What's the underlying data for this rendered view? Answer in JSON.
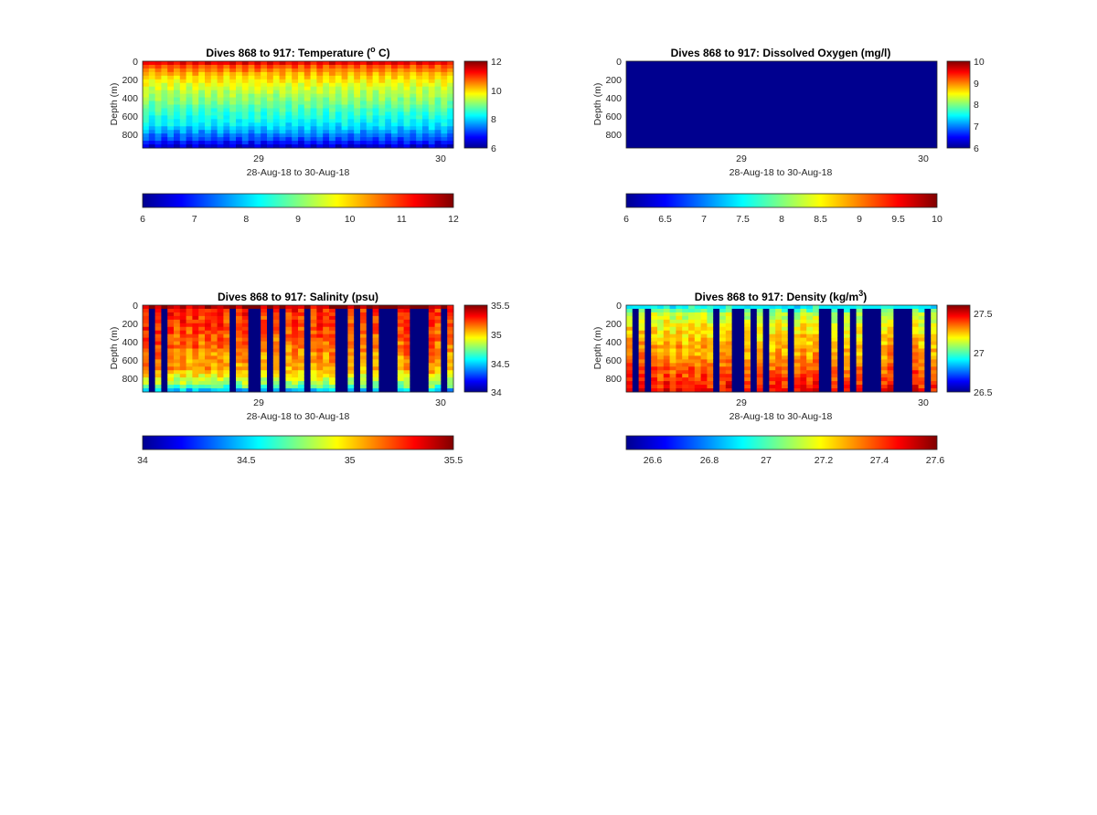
{
  "chart_data": [
    {
      "type": "heatmap",
      "title": "Dives 868 to 917: Temperature (° C)",
      "title_main": "Dives 868 to 917: Temperature (",
      "title_sup": "o",
      "title_tail": " C)",
      "xlabel": "28-Aug-18 to 30-Aug-18",
      "ylabel": "Depth (m)",
      "x_ticks": [
        "29",
        "30"
      ],
      "y_ticks": [
        "0",
        "200",
        "400",
        "600",
        "800"
      ],
      "ylim": [
        0,
        950
      ],
      "y_reversed": true,
      "colormap": "jet",
      "clim": [
        6,
        12
      ],
      "colorbar_ticks": [
        "6",
        "8",
        "10",
        "12"
      ],
      "horizontal_colorbar_ticks": [
        "6",
        "7",
        "8",
        "9",
        "10",
        "11",
        "12"
      ],
      "dives": {
        "first": 868,
        "last": 917
      },
      "profile": [
        {
          "depth": 0,
          "value": 11.8
        },
        {
          "depth": 50,
          "value": 11.0
        },
        {
          "depth": 150,
          "value": 10.3
        },
        {
          "depth": 250,
          "value": 9.8
        },
        {
          "depth": 400,
          "value": 9.3
        },
        {
          "depth": 550,
          "value": 8.8
        },
        {
          "depth": 700,
          "value": 8.3
        },
        {
          "depth": 850,
          "value": 7.4
        },
        {
          "depth": 950,
          "value": 6.5
        }
      ],
      "notes": "Surface ~12, decreasing to ~6-7 at depth; alternating dive/climb columns"
    },
    {
      "type": "heatmap",
      "title": "Dives 868 to 917: Dissolved Oxygen (mg/l)",
      "xlabel": "28-Aug-18 to 30-Aug-18",
      "ylabel": "Depth (m)",
      "x_ticks": [
        "29",
        "30"
      ],
      "y_ticks": [
        "0",
        "200",
        "400",
        "600",
        "800"
      ],
      "ylim": [
        0,
        950
      ],
      "y_reversed": true,
      "colormap": "jet",
      "clim": [
        6,
        10
      ],
      "colorbar_ticks": [
        "6",
        "7",
        "8",
        "9",
        "10"
      ],
      "horizontal_colorbar_ticks": [
        "6",
        "6.5",
        "7",
        "7.5",
        "8",
        "8.5",
        "9",
        "9.5",
        "10"
      ],
      "uniform_value": 6,
      "notes": "Entire section at minimum of color scale"
    },
    {
      "type": "heatmap",
      "title": "Dives 868 to 917: Salinity (psu)",
      "xlabel": "28-Aug-18 to 30-Aug-18",
      "ylabel": "Depth (m)",
      "x_ticks": [
        "29",
        "30"
      ],
      "y_ticks": [
        "0",
        "200",
        "400",
        "600",
        "800"
      ],
      "ylim": [
        0,
        950
      ],
      "y_reversed": true,
      "colormap": "jet",
      "clim": [
        34,
        35.5
      ],
      "colorbar_ticks": [
        "34",
        "34.5",
        "35",
        "35.5"
      ],
      "horizontal_colorbar_ticks": [
        "34",
        "34.5",
        "35",
        "35.5"
      ],
      "profile": [
        {
          "depth": 0,
          "value": 35.5
        },
        {
          "depth": 60,
          "value": 35.3
        },
        {
          "depth": 300,
          "value": 35.25
        },
        {
          "depth": 700,
          "value": 35.1
        },
        {
          "depth": 880,
          "value": 34.8
        },
        {
          "depth": 950,
          "value": 34.4
        }
      ],
      "background_value": 34,
      "missing_columns": [
        1,
        3,
        14,
        17,
        18,
        20,
        22,
        26,
        31,
        32,
        34,
        36,
        38,
        39,
        40,
        43,
        44,
        45,
        48
      ],
      "notes": "Gaps (no data) shown at minimum color"
    },
    {
      "type": "heatmap",
      "title": "Dives 868 to 917: Density (kg/m³)",
      "title_main": "Dives 868 to 917: Density (kg/m",
      "title_sup": "3",
      "title_tail": ")",
      "xlabel": "28-Aug-18 to 30-Aug-18",
      "ylabel": "Depth (m)",
      "x_ticks": [
        "29",
        "30"
      ],
      "y_ticks": [
        "0",
        "200",
        "400",
        "600",
        "800"
      ],
      "ylim": [
        0,
        950
      ],
      "y_reversed": true,
      "colormap": "jet",
      "clim": [
        26.5,
        27.6
      ],
      "colorbar_ticks": [
        "26.5",
        "27",
        "27.5"
      ],
      "horizontal_colorbar_ticks": [
        "26.6",
        "26.8",
        "27",
        "27.2",
        "27.4",
        "27.6"
      ],
      "profile": [
        {
          "depth": 0,
          "value": 26.9
        },
        {
          "depth": 100,
          "value": 27.15
        },
        {
          "depth": 300,
          "value": 27.25
        },
        {
          "depth": 600,
          "value": 27.35
        },
        {
          "depth": 850,
          "value": 27.45
        },
        {
          "depth": 950,
          "value": 27.5
        }
      ],
      "background_value": 26.5,
      "missing_columns": [
        1,
        3,
        14,
        17,
        18,
        20,
        22,
        26,
        31,
        32,
        34,
        36,
        38,
        39,
        40,
        43,
        44,
        45,
        48
      ]
    }
  ]
}
